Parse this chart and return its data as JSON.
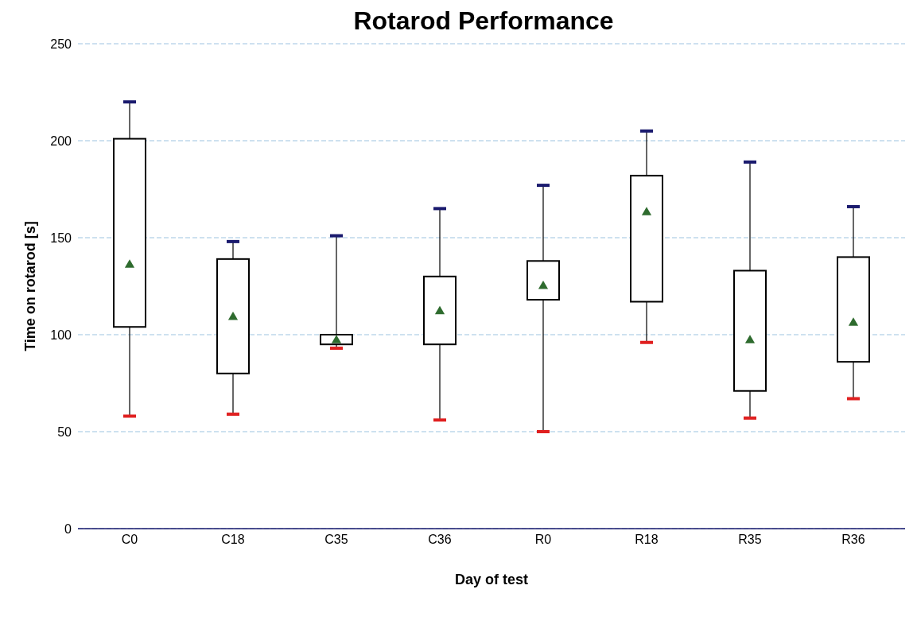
{
  "chart_data": {
    "type": "box",
    "title": "Rotarod Performance",
    "xlabel": "Day of test",
    "ylabel": "Time on rotarod [s]",
    "categories": [
      "C0",
      "C18",
      "C35",
      "C36",
      "R0",
      "R18",
      "R35",
      "R36"
    ],
    "color": "#000000",
    "boxes": [
      {
        "low": 58,
        "q1": 104,
        "q3": 201,
        "high": 220,
        "mean": 136
      },
      {
        "low": 59,
        "q1": 80,
        "q3": 139,
        "high": 148,
        "mean": 109
      },
      {
        "low": 93,
        "q1": 95,
        "q3": 100,
        "high": 151,
        "mean": 97
      },
      {
        "low": 56,
        "q1": 95,
        "q3": 130,
        "high": 165,
        "mean": 112
      },
      {
        "low": 50,
        "q1": 118,
        "q3": 138,
        "high": 177,
        "mean": 125
      },
      {
        "low": 96,
        "q1": 117,
        "q3": 182,
        "high": 205,
        "mean": 163
      },
      {
        "low": 57,
        "q1": 71,
        "q3": 133,
        "high": 189,
        "mean": 97
      },
      {
        "low": 67,
        "q1": 86,
        "q3": 140,
        "high": 166,
        "mean": 106
      }
    ],
    "ylim": [
      0,
      250
    ],
    "yticks": [
      0,
      50,
      100,
      150,
      200,
      250
    ],
    "grid": "y",
    "marker": "triangle"
  }
}
